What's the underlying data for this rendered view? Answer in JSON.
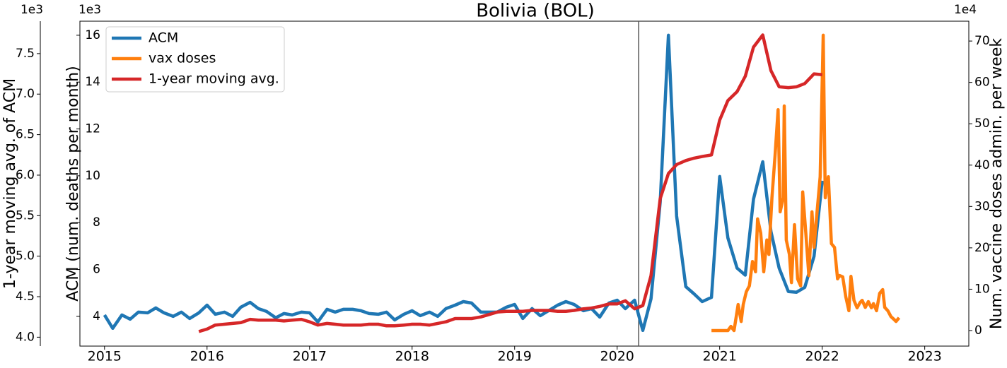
{
  "chart_data": {
    "type": "line",
    "title": "Bolivia (BOL)",
    "ylabel": "ACM (num. deaths per month)",
    "y2label": "Num. vaccine doses admin. per week",
    "y3label": "1-year moving avg. of ACM",
    "y_offset": "1e3",
    "y2_offset": "1e4",
    "y3_offset": "1e3",
    "xlim": [
      2014.76,
      2023.43
    ],
    "xticks": [
      2015,
      2016,
      2017,
      2018,
      2019,
      2020,
      2021,
      2022,
      2023
    ],
    "ylim": [
      2.73,
      16.6
    ],
    "yticks": [
      4,
      6,
      8,
      10,
      12,
      14,
      16
    ],
    "y2lim": [
      -3.76,
      74.8
    ],
    "y2ticks": [
      0,
      10,
      20,
      30,
      40,
      50,
      60,
      70
    ],
    "y3lim": [
      3.89,
      7.9
    ],
    "y3ticks": [
      {
        "value": 4,
        "label": "4.0"
      },
      4.5,
      {
        "value": 5,
        "label": "5.0"
      },
      5.5,
      {
        "value": 6,
        "label": "6.0"
      },
      6.5,
      {
        "value": 7,
        "label": "7.0"
      },
      7.5
    ],
    "vline_x": 2020.21,
    "legend": "upper left",
    "series": [
      {
        "name": "ACM",
        "color": "#1f77b4",
        "axis": "y",
        "x": [
          2015,
          2015.08,
          2015.17,
          2015.25,
          2015.33,
          2015.42,
          2015.5,
          2015.58,
          2015.67,
          2015.75,
          2015.83,
          2015.92,
          2016,
          2016.08,
          2016.17,
          2016.25,
          2016.33,
          2016.42,
          2016.5,
          2016.58,
          2016.67,
          2016.75,
          2016.83,
          2016.92,
          2017,
          2017.08,
          2017.17,
          2017.25,
          2017.33,
          2017.42,
          2017.5,
          2017.58,
          2017.67,
          2017.75,
          2017.83,
          2017.92,
          2018,
          2018.08,
          2018.17,
          2018.25,
          2018.33,
          2018.42,
          2018.5,
          2018.58,
          2018.67,
          2018.75,
          2018.83,
          2018.92,
          2019,
          2019.08,
          2019.17,
          2019.25,
          2019.33,
          2019.42,
          2019.5,
          2019.58,
          2019.67,
          2019.75,
          2019.83,
          2019.92,
          2020,
          2020.08,
          2020.17,
          2020.25,
          2020.33,
          2020.42,
          2020.5,
          2020.58,
          2020.67,
          2020.75,
          2020.83,
          2020.92,
          2021,
          2021.08,
          2021.17,
          2021.25,
          2021.33,
          2021.42,
          2021.5,
          2021.58,
          2021.67,
          2021.75,
          2021.83,
          2021.92,
          2022
        ],
        "values": [
          4.06,
          3.49,
          4.06,
          3.88,
          4.18,
          4.15,
          4.36,
          4.15,
          4.0,
          4.18,
          3.91,
          4.15,
          4.48,
          4.09,
          4.18,
          4.0,
          4.39,
          4.6,
          4.33,
          4.21,
          3.94,
          4.12,
          4.06,
          4.18,
          4.15,
          3.76,
          4.3,
          4.18,
          4.3,
          4.3,
          4.24,
          4.12,
          4.09,
          4.18,
          3.85,
          4.09,
          4.24,
          4.03,
          4.18,
          4.0,
          4.33,
          4.48,
          4.63,
          4.57,
          4.18,
          4.18,
          4.18,
          4.39,
          4.51,
          3.91,
          4.33,
          4.03,
          4.24,
          4.48,
          4.63,
          4.51,
          4.24,
          4.33,
          3.97,
          4.57,
          4.69,
          4.33,
          4.69,
          3.4,
          4.75,
          8.88,
          16.0,
          8.28,
          5.27,
          4.96,
          4.63,
          4.81,
          9.97,
          7.35,
          6.06,
          5.76,
          9.0,
          10.6,
          7.62,
          6.06,
          5.06,
          5.03,
          5.24,
          6.56,
          9.79
        ]
      },
      {
        "name": "vax doses",
        "color": "#ff7f0e",
        "axis": "y2",
        "x": [
          2020.92,
          2021.08,
          2021.11,
          2021.14,
          2021.18,
          2021.21,
          2021.23,
          2021.26,
          2021.29,
          2021.32,
          2021.35,
          2021.37,
          2021.4,
          2021.43,
          2021.46,
          2021.48,
          2021.51,
          2021.54,
          2021.57,
          2021.59,
          2021.62,
          2021.63,
          2021.65,
          2021.68,
          2021.7,
          2021.73,
          2021.76,
          2021.79,
          2021.81,
          2021.84,
          2021.87,
          2021.9,
          2021.92,
          2021.95,
          2021.98,
          2022.01,
          2022.03,
          2022.06,
          2022.09,
          2022.12,
          2022.15,
          2022.17,
          2022.2,
          2022.23,
          2022.26,
          2022.28,
          2022.31,
          2022.34,
          2022.37,
          2022.39,
          2022.42,
          2022.45,
          2022.48,
          2022.5,
          2022.53,
          2022.56,
          2022.59,
          2022.61,
          2022.64,
          2022.67,
          2022.7,
          2022.72,
          2022.75
        ],
        "values": [
          0,
          0,
          1.0,
          0,
          6.3,
          2.2,
          6.3,
          9.4,
          10.8,
          16.7,
          14.2,
          27.0,
          23.6,
          14.2,
          21.9,
          18.4,
          32.1,
          42.3,
          53.4,
          28.7,
          32.1,
          54.3,
          21.9,
          18.4,
          11.6,
          25.6,
          12.5,
          10.8,
          33.5,
          23.6,
          13.3,
          28.7,
          20.1,
          28.7,
          37.2,
          71.4,
          32.1,
          37.2,
          21.0,
          20.1,
          12.5,
          13.3,
          13.0,
          8.2,
          4.8,
          13.1,
          7.3,
          5.5,
          6.8,
          7.3,
          5.6,
          7.0,
          5.5,
          6.5,
          4.8,
          9.0,
          9.9,
          5.6,
          4.8,
          3.4,
          2.7,
          2.2,
          3.1
        ]
      },
      {
        "name": "1-year moving avg.",
        "color": "#d62728",
        "axis": "y3",
        "x": [
          2015.92,
          2016,
          2016.08,
          2016.17,
          2016.25,
          2016.33,
          2016.42,
          2016.5,
          2016.58,
          2016.67,
          2016.75,
          2016.83,
          2016.92,
          2017,
          2017.08,
          2017.17,
          2017.25,
          2017.33,
          2017.42,
          2017.5,
          2017.58,
          2017.67,
          2017.75,
          2017.83,
          2017.92,
          2018,
          2018.08,
          2018.17,
          2018.25,
          2018.33,
          2018.42,
          2018.5,
          2018.58,
          2018.67,
          2018.75,
          2018.83,
          2018.92,
          2019,
          2019.08,
          2019.17,
          2019.25,
          2019.33,
          2019.42,
          2019.5,
          2019.58,
          2019.67,
          2019.75,
          2019.83,
          2019.92,
          2020,
          2020.08,
          2020.17,
          2020.25,
          2020.33,
          2020.42,
          2020.5,
          2020.58,
          2020.67,
          2020.75,
          2020.83,
          2020.92,
          2021,
          2021.08,
          2021.17,
          2021.25,
          2021.33,
          2021.42,
          2021.5,
          2021.58,
          2021.67,
          2021.75,
          2021.83,
          2021.92,
          2022
        ],
        "values": [
          4.07,
          4.1,
          4.15,
          4.16,
          4.17,
          4.18,
          4.22,
          4.21,
          4.21,
          4.21,
          4.2,
          4.21,
          4.22,
          4.19,
          4.15,
          4.17,
          4.16,
          4.15,
          4.15,
          4.15,
          4.16,
          4.16,
          4.14,
          4.14,
          4.15,
          4.16,
          4.16,
          4.15,
          4.17,
          4.19,
          4.23,
          4.23,
          4.23,
          4.25,
          4.28,
          4.31,
          4.32,
          4.32,
          4.32,
          4.33,
          4.33,
          4.33,
          4.32,
          4.32,
          4.33,
          4.35,
          4.36,
          4.38,
          4.41,
          4.41,
          4.45,
          4.35,
          4.39,
          4.76,
          5.71,
          6.02,
          6.13,
          6.18,
          6.21,
          6.23,
          6.25,
          6.68,
          6.92,
          7.03,
          7.22,
          7.58,
          7.73,
          7.29,
          7.09,
          7.08,
          7.09,
          7.13,
          7.25,
          7.24
        ]
      }
    ]
  }
}
